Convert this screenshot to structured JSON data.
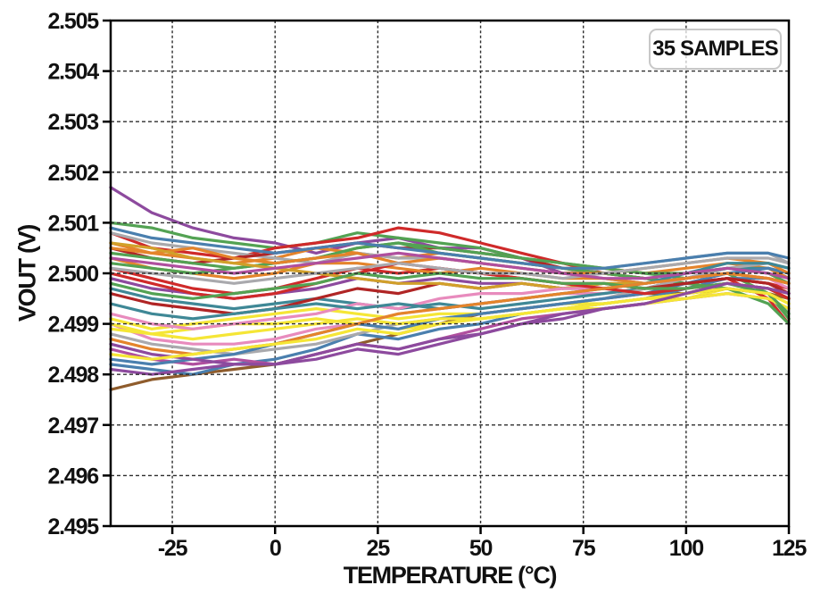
{
  "chart_data": {
    "type": "line",
    "title": "",
    "xlabel": "TEMPERATURE (°C)",
    "ylabel": "VOUT (V)",
    "annotation": "35 SAMPLES",
    "legend_position": "top-right-inside",
    "grid": "dashed-both-axes",
    "xlim": [
      -40,
      125
    ],
    "ylim": [
      2.495,
      2.505
    ],
    "x_ticks": [
      -25,
      0,
      25,
      50,
      75,
      100,
      125
    ],
    "x_tick_labels": [
      "-25",
      "0",
      "25",
      "50",
      "75",
      "100",
      "125"
    ],
    "y_ticks": [
      2.495,
      2.496,
      2.497,
      2.498,
      2.499,
      2.5,
      2.501,
      2.502,
      2.503,
      2.504,
      2.505
    ],
    "y_tick_labels": [
      "2.495",
      "2.496",
      "2.497",
      "2.498",
      "2.499",
      "2.500",
      "2.501",
      "2.502",
      "2.503",
      "2.504",
      "2.505"
    ],
    "x": [
      -40,
      -30,
      -20,
      -10,
      0,
      10,
      20,
      30,
      40,
      50,
      60,
      70,
      80,
      90,
      100,
      110,
      120,
      125
    ],
    "series": [
      {
        "color": "#8d4a9e",
        "values": [
          2.5017,
          2.5012,
          2.5009,
          2.5007,
          2.5006,
          2.5004,
          2.5006,
          2.5007,
          2.5005,
          2.5005,
          2.5003,
          2.5,
          2.4999,
          2.4998,
          2.4999,
          2.5001,
          2.5001,
          2.4999
        ]
      },
      {
        "color": "#53a253",
        "values": [
          2.501,
          2.5009,
          2.5007,
          2.5006,
          2.5005,
          2.5006,
          2.5008,
          2.5007,
          2.5006,
          2.5005,
          2.5003,
          2.5002,
          2.5001,
          2.5,
          2.4999,
          2.5,
          2.4996,
          2.4991
        ]
      },
      {
        "color": "#cf2a2a",
        "values": [
          2.5008,
          2.5005,
          2.5004,
          2.5003,
          2.5005,
          2.5006,
          2.5007,
          2.5009,
          2.5008,
          2.5006,
          2.5004,
          2.5002,
          2.5,
          2.4999,
          2.4998,
          2.4999,
          2.4995,
          2.499
        ]
      },
      {
        "color": "#e4842b",
        "values": [
          2.5006,
          2.5004,
          2.5003,
          2.5002,
          2.5003,
          2.5005,
          2.5004,
          2.5003,
          2.5004,
          2.5003,
          2.5002,
          2.5001,
          2.5001,
          2.5,
          2.5001,
          2.5002,
          2.5001,
          2.4999
        ]
      },
      {
        "color": "#a9a9ad",
        "values": [
          2.5008,
          2.5006,
          2.5005,
          2.5004,
          2.5003,
          2.5002,
          2.5004,
          2.5003,
          2.5003,
          2.5002,
          2.5001,
          2.5,
          2.5001,
          2.5002,
          2.5003,
          2.5004,
          2.5004,
          2.5002
        ]
      },
      {
        "color": "#b02525",
        "values": [
          2.5005,
          2.5003,
          2.5002,
          2.5003,
          2.5004,
          2.5005,
          2.5006,
          2.5005,
          2.5005,
          2.5004,
          2.5003,
          2.5001,
          2.5,
          2.4999,
          2.4998,
          2.4999,
          2.4998,
          2.4996
        ]
      },
      {
        "color": "#f5e636",
        "values": [
          2.4991,
          2.4989,
          2.499,
          2.4991,
          2.4992,
          2.4993,
          2.4992,
          2.4991,
          2.4992,
          2.4992,
          2.4993,
          2.4994,
          2.4994,
          2.4995,
          2.4995,
          2.4997,
          2.4996,
          2.4994
        ]
      },
      {
        "color": "#e88bbd",
        "values": [
          2.499,
          2.4987,
          2.4986,
          2.4986,
          2.4987,
          2.4989,
          2.499,
          2.4992,
          2.4993,
          2.4994,
          2.4995,
          2.4996,
          2.4996,
          2.4997,
          2.4997,
          2.4998,
          2.4997,
          2.4995
        ]
      },
      {
        "color": "#8f5c2c",
        "values": [
          2.4977,
          2.4979,
          2.498,
          2.4981,
          2.4982,
          2.4984,
          2.4986,
          2.4988,
          2.499,
          2.4992,
          2.4993,
          2.4994,
          2.4995,
          2.4996,
          2.4996,
          2.4997,
          2.4996,
          2.4995
        ]
      },
      {
        "color": "#4a7fae",
        "values": [
          2.4982,
          2.4981,
          2.498,
          2.4982,
          2.4983,
          2.4985,
          2.4988,
          2.4987,
          2.4989,
          2.499,
          2.4992,
          2.4993,
          2.4994,
          2.4995,
          2.4997,
          2.4999,
          2.4999,
          2.4998
        ]
      },
      {
        "color": "#3f8896",
        "values": [
          2.4997,
          2.4995,
          2.4994,
          2.4993,
          2.4994,
          2.4995,
          2.4994,
          2.4993,
          2.4994,
          2.4993,
          2.4994,
          2.4995,
          2.4996,
          2.4997,
          2.4999,
          2.5001,
          2.5001,
          2.5
        ]
      },
      {
        "color": "#b04f9e",
        "values": [
          2.4985,
          2.4983,
          2.4982,
          2.4983,
          2.4982,
          2.4984,
          2.4986,
          2.4985,
          2.4987,
          2.4989,
          2.4991,
          2.4992,
          2.4993,
          2.4994,
          2.4995,
          2.4996,
          2.4995,
          2.4993
        ]
      },
      {
        "color": "#53a253",
        "values": [
          2.5004,
          2.5003,
          2.5002,
          2.5001,
          2.5002,
          2.5003,
          2.5005,
          2.5006,
          2.5004,
          2.5003,
          2.5002,
          2.5001,
          2.5,
          2.4999,
          2.4998,
          2.4997,
          2.4994,
          2.499
        ]
      },
      {
        "color": "#cf2a2a",
        "values": [
          2.5001,
          2.4999,
          2.4997,
          2.4996,
          2.4997,
          2.4999,
          2.5001,
          2.5,
          2.5001,
          2.5,
          2.4999,
          2.4998,
          2.4998,
          2.4997,
          2.4998,
          2.4999,
          2.4998,
          2.4997
        ]
      },
      {
        "color": "#e4842b",
        "values": [
          2.5003,
          2.5001,
          2.5,
          2.4999,
          2.5,
          2.5002,
          2.5002,
          2.5001,
          2.5,
          2.5001,
          2.5,
          2.4999,
          2.4999,
          2.4998,
          2.4999,
          2.5,
          2.4999,
          2.4998
        ]
      },
      {
        "color": "#a9a9ad",
        "values": [
          2.4988,
          2.4986,
          2.4985,
          2.4984,
          2.4985,
          2.4986,
          2.4988,
          2.499,
          2.4991,
          2.4992,
          2.4993,
          2.4994,
          2.4995,
          2.4997,
          2.4999,
          2.5001,
          2.5002,
          2.5001
        ]
      },
      {
        "color": "#8d4a9e",
        "values": [
          2.4999,
          2.4997,
          2.4996,
          2.4995,
          2.4996,
          2.4997,
          2.4999,
          2.4998,
          2.4999,
          2.4998,
          2.4998,
          2.4997,
          2.4997,
          2.4998,
          2.4999,
          2.5,
          2.4999,
          2.4998
        ]
      },
      {
        "color": "#f5e636",
        "values": [
          2.4989,
          2.4988,
          2.4989,
          2.499,
          2.499,
          2.4991,
          2.499,
          2.4989,
          2.499,
          2.4991,
          2.4992,
          2.4993,
          2.4993,
          2.4994,
          2.4995,
          2.4996,
          2.4995,
          2.4993
        ]
      },
      {
        "color": "#4a7fae",
        "values": [
          2.4983,
          2.4982,
          2.4983,
          2.4984,
          2.4986,
          2.4988,
          2.499,
          2.4989,
          2.4991,
          2.4992,
          2.4993,
          2.4994,
          2.4995,
          2.4996,
          2.4998,
          2.5,
          2.5001,
          2.5
        ]
      },
      {
        "color": "#53a253",
        "values": [
          2.5002,
          2.5001,
          2.5,
          2.5001,
          2.5002,
          2.5003,
          2.5005,
          2.5006,
          2.5005,
          2.5004,
          2.5003,
          2.5002,
          2.5001,
          2.5,
          2.5,
          2.5001,
          2.5,
          2.4998
        ]
      },
      {
        "color": "#b02525",
        "values": [
          2.4996,
          2.4994,
          2.4993,
          2.4992,
          2.4993,
          2.4995,
          2.4997,
          2.4996,
          2.4998,
          2.4997,
          2.4998,
          2.4997,
          2.4998,
          2.4997,
          2.4998,
          2.4999,
          2.4998,
          2.4996
        ]
      },
      {
        "color": "#e4842b",
        "values": [
          2.5005,
          2.5004,
          2.5005,
          2.5003,
          2.5002,
          2.5003,
          2.5004,
          2.5002,
          2.5003,
          2.5002,
          2.5001,
          2.5,
          2.5,
          2.5001,
          2.5002,
          2.5003,
          2.5002,
          2.5
        ]
      },
      {
        "color": "#d1a02a",
        "values": [
          2.5006,
          2.5005,
          2.5003,
          2.5002,
          2.5001,
          2.5,
          2.4999,
          2.4998,
          2.4998,
          2.4997,
          2.4998,
          2.4997,
          2.4998,
          2.4998,
          2.4999,
          2.5,
          2.4999,
          2.4998
        ]
      },
      {
        "color": "#e88bbd",
        "values": [
          2.4992,
          2.499,
          2.4989,
          2.499,
          2.4991,
          2.4992,
          2.4994,
          2.4993,
          2.4995,
          2.4996,
          2.4996,
          2.4997,
          2.4997,
          2.4998,
          2.4999,
          2.5,
          2.4999,
          2.4997
        ]
      },
      {
        "color": "#8d4a9e",
        "values": [
          2.4986,
          2.4984,
          2.4983,
          2.4982,
          2.4982,
          2.4983,
          2.4985,
          2.4984,
          2.4986,
          2.4988,
          2.499,
          2.4992,
          2.4993,
          2.4994,
          2.4996,
          2.4998,
          2.4997,
          2.4996
        ]
      },
      {
        "color": "#3f8896",
        "values": [
          2.4994,
          2.4992,
          2.4991,
          2.4992,
          2.4993,
          2.4994,
          2.4993,
          2.4994,
          2.4993,
          2.4994,
          2.4995,
          2.4996,
          2.4997,
          2.4998,
          2.5,
          2.5002,
          2.5002,
          2.5001
        ]
      },
      {
        "color": "#f5e636",
        "values": [
          2.499,
          2.4988,
          2.4987,
          2.4988,
          2.4989,
          2.499,
          2.4991,
          2.499,
          2.4991,
          2.4991,
          2.4992,
          2.4993,
          2.4994,
          2.4995,
          2.4996,
          2.4998,
          2.4997,
          2.4995
        ]
      },
      {
        "color": "#cf2a2a",
        "values": [
          2.5,
          2.4998,
          2.4996,
          2.4995,
          2.4996,
          2.4998,
          2.5,
          2.5002,
          2.5001,
          2.5,
          2.4999,
          2.4998,
          2.4997,
          2.4996,
          2.4997,
          2.4998,
          2.4997,
          2.4995
        ]
      },
      {
        "color": "#a9a9ad",
        "values": [
          2.5001,
          2.5,
          2.4999,
          2.4998,
          2.4999,
          2.5,
          2.5001,
          2.5002,
          2.5001,
          2.5,
          2.5,
          2.4999,
          2.5,
          2.5001,
          2.5002,
          2.5003,
          2.5003,
          2.5002
        ]
      },
      {
        "color": "#53a253",
        "values": [
          2.4998,
          2.4996,
          2.4995,
          2.4996,
          2.4997,
          2.4998,
          2.5,
          2.4999,
          2.5,
          2.4999,
          2.4999,
          2.4998,
          2.4998,
          2.4997,
          2.4997,
          2.4998,
          2.4996,
          2.4992
        ]
      },
      {
        "color": "#e4842b",
        "values": [
          2.4987,
          2.4985,
          2.4984,
          2.4985,
          2.4986,
          2.4988,
          2.499,
          2.4992,
          2.4993,
          2.4994,
          2.4995,
          2.4996,
          2.4997,
          2.4998,
          2.4999,
          2.5,
          2.4999,
          2.4998
        ]
      },
      {
        "color": "#b04f9e",
        "values": [
          2.5003,
          2.5002,
          2.5001,
          2.5,
          2.5001,
          2.5002,
          2.5003,
          2.5004,
          2.5003,
          2.5002,
          2.5001,
          2.5,
          2.4999,
          2.4999,
          2.5,
          2.5001,
          2.5,
          2.4999
        ]
      },
      {
        "color": "#4a7fae",
        "values": [
          2.5009,
          2.5007,
          2.5006,
          2.5005,
          2.5004,
          2.5005,
          2.5006,
          2.5005,
          2.5004,
          2.5003,
          2.5002,
          2.5001,
          2.5001,
          2.5002,
          2.5003,
          2.5004,
          2.5004,
          2.5003
        ]
      },
      {
        "color": "#f5e636",
        "values": [
          2.4984,
          2.4983,
          2.4984,
          2.4985,
          2.4986,
          2.4987,
          2.4989,
          2.4988,
          2.499,
          2.4991,
          2.4992,
          2.4993,
          2.4994,
          2.4995,
          2.4996,
          2.4997,
          2.4996,
          2.4994
        ]
      },
      {
        "color": "#8d4a9e",
        "values": [
          2.4981,
          2.498,
          2.4981,
          2.4982,
          2.4982,
          2.4984,
          2.4986,
          2.4985,
          2.4987,
          2.4988,
          2.499,
          2.4991,
          2.4993,
          2.4994,
          2.4996,
          2.4998,
          2.4997,
          2.4996
        ]
      }
    ]
  },
  "style": {
    "background": "#ffffff",
    "grid_color": "#2e2e2e",
    "axis_color": "#000000",
    "text_color": "#111111",
    "legend_border_color": "#c8c8c8"
  }
}
